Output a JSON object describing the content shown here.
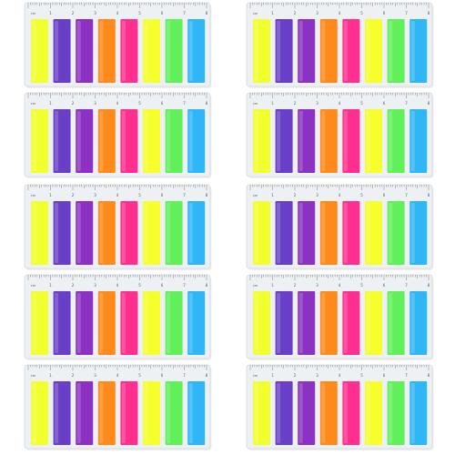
{
  "image": {
    "subject": "sticky-index-tab-sets",
    "grid": {
      "columns": 2,
      "rows": 5
    },
    "tab_colors": [
      "#f2ff2e",
      "#6a3fc8",
      "#8b32c3",
      "#ff8a1c",
      "#ff2f8f",
      "#f6ff2b",
      "#62f05a",
      "#2fb6f7"
    ],
    "ruler_color": "#eef1f4",
    "ruler_unit_label": "cm",
    "ruler_numbers": [
      "1",
      "2",
      "3",
      "4",
      "5",
      "6",
      "7",
      "8"
    ]
  }
}
